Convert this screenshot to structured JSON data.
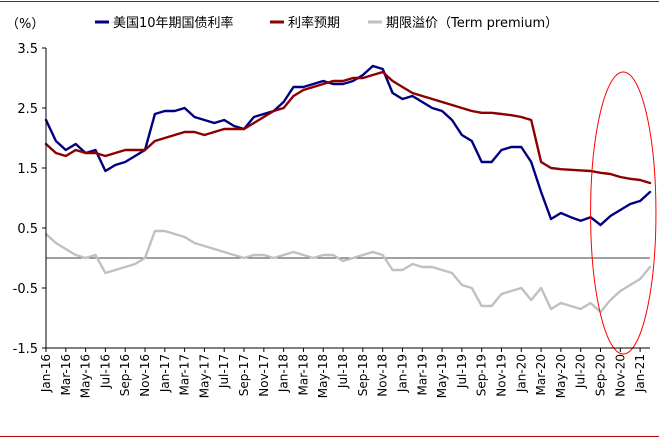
{
  "chart_data": {
    "type": "line",
    "unit_label": "（%）",
    "ylim": [
      -1.5,
      3.5
    ],
    "yticks": [
      3.5,
      2.5,
      1.5,
      0.5,
      -0.5,
      -1.5
    ],
    "ytick_labels": [
      "3.5",
      "2.5",
      "1.5",
      "0.5",
      "-0.5",
      "-1.5"
    ],
    "xlim": [
      0,
      61
    ],
    "xticks": [
      "Jan-16",
      "Mar-16",
      "May-16",
      "Jul-16",
      "Sep-16",
      "Nov-16",
      "Jan-17",
      "Mar-17",
      "May-17",
      "Jul-17",
      "Sep-17",
      "Nov-17",
      "Jan-18",
      "Mar-18",
      "May-18",
      "Jul-18",
      "Sep-18",
      "Nov-18",
      "Jan-19",
      "Mar-19",
      "May-19",
      "Jul-19",
      "Sep-19",
      "Nov-19",
      "Jan-20",
      "Mar-20",
      "May-20",
      "Jul-20",
      "Sep-20",
      "Nov-20",
      "Jan-21"
    ],
    "series": [
      {
        "name": "美国10年期国债利率",
        "color": "#000080",
        "points": [
          [
            0,
            2.3
          ],
          [
            1,
            1.95
          ],
          [
            2,
            1.8
          ],
          [
            3,
            1.9
          ],
          [
            4,
            1.75
          ],
          [
            5,
            1.8
          ],
          [
            6,
            1.45
          ],
          [
            7,
            1.55
          ],
          [
            8,
            1.6
          ],
          [
            9,
            1.7
          ],
          [
            10,
            1.8
          ],
          [
            11,
            2.4
          ],
          [
            12,
            2.45
          ],
          [
            13,
            2.45
          ],
          [
            14,
            2.5
          ],
          [
            15,
            2.35
          ],
          [
            16,
            2.3
          ],
          [
            17,
            2.25
          ],
          [
            18,
            2.3
          ],
          [
            19,
            2.2
          ],
          [
            20,
            2.15
          ],
          [
            21,
            2.35
          ],
          [
            22,
            2.4
          ],
          [
            23,
            2.45
          ],
          [
            24,
            2.6
          ],
          [
            25,
            2.85
          ],
          [
            26,
            2.85
          ],
          [
            27,
            2.9
          ],
          [
            28,
            2.95
          ],
          [
            29,
            2.9
          ],
          [
            30,
            2.9
          ],
          [
            31,
            2.95
          ],
          [
            32,
            3.05
          ],
          [
            33,
            3.2
          ],
          [
            34,
            3.15
          ],
          [
            35,
            2.75
          ],
          [
            36,
            2.65
          ],
          [
            37,
            2.7
          ],
          [
            38,
            2.6
          ],
          [
            39,
            2.5
          ],
          [
            40,
            2.45
          ],
          [
            41,
            2.3
          ],
          [
            42,
            2.05
          ],
          [
            43,
            1.95
          ],
          [
            44,
            1.6
          ],
          [
            45,
            1.6
          ],
          [
            46,
            1.8
          ],
          [
            47,
            1.85
          ],
          [
            48,
            1.85
          ],
          [
            49,
            1.6
          ],
          [
            50,
            1.1
          ],
          [
            51,
            0.65
          ],
          [
            52,
            0.75
          ],
          [
            53,
            0.68
          ],
          [
            54,
            0.62
          ],
          [
            55,
            0.68
          ],
          [
            56,
            0.55
          ],
          [
            57,
            0.7
          ],
          [
            58,
            0.8
          ],
          [
            59,
            0.9
          ],
          [
            60,
            0.95
          ],
          [
            61,
            1.1
          ]
        ]
      },
      {
        "name": "利率预期",
        "color": "#8b0000",
        "points": [
          [
            0,
            1.9
          ],
          [
            1,
            1.75
          ],
          [
            2,
            1.7
          ],
          [
            3,
            1.8
          ],
          [
            4,
            1.75
          ],
          [
            5,
            1.75
          ],
          [
            6,
            1.7
          ],
          [
            7,
            1.75
          ],
          [
            8,
            1.8
          ],
          [
            9,
            1.8
          ],
          [
            10,
            1.8
          ],
          [
            11,
            1.95
          ],
          [
            12,
            2.0
          ],
          [
            13,
            2.05
          ],
          [
            14,
            2.1
          ],
          [
            15,
            2.1
          ],
          [
            16,
            2.05
          ],
          [
            17,
            2.1
          ],
          [
            18,
            2.15
          ],
          [
            19,
            2.15
          ],
          [
            20,
            2.15
          ],
          [
            21,
            2.25
          ],
          [
            22,
            2.35
          ],
          [
            23,
            2.45
          ],
          [
            24,
            2.5
          ],
          [
            25,
            2.7
          ],
          [
            26,
            2.8
          ],
          [
            27,
            2.85
          ],
          [
            28,
            2.9
          ],
          [
            29,
            2.95
          ],
          [
            30,
            2.95
          ],
          [
            31,
            3.0
          ],
          [
            32,
            3.0
          ],
          [
            33,
            3.05
          ],
          [
            34,
            3.1
          ],
          [
            35,
            2.95
          ],
          [
            36,
            2.85
          ],
          [
            37,
            2.75
          ],
          [
            38,
            2.7
          ],
          [
            39,
            2.65
          ],
          [
            40,
            2.6
          ],
          [
            41,
            2.55
          ],
          [
            42,
            2.5
          ],
          [
            43,
            2.45
          ],
          [
            44,
            2.42
          ],
          [
            45,
            2.42
          ],
          [
            46,
            2.4
          ],
          [
            47,
            2.38
          ],
          [
            48,
            2.35
          ],
          [
            49,
            2.3
          ],
          [
            50,
            1.6
          ],
          [
            51,
            1.5
          ],
          [
            52,
            1.48
          ],
          [
            53,
            1.47
          ],
          [
            54,
            1.46
          ],
          [
            55,
            1.45
          ],
          [
            56,
            1.42
          ],
          [
            57,
            1.4
          ],
          [
            58,
            1.35
          ],
          [
            59,
            1.32
          ],
          [
            60,
            1.3
          ],
          [
            61,
            1.25
          ]
        ]
      },
      {
        "name": "期限溢价（Term premium）",
        "color": "#c0c0c0",
        "points": [
          [
            0,
            0.4
          ],
          [
            1,
            0.25
          ],
          [
            2,
            0.15
          ],
          [
            3,
            0.05
          ],
          [
            4,
            0.0
          ],
          [
            5,
            0.05
          ],
          [
            6,
            -0.25
          ],
          [
            7,
            -0.2
          ],
          [
            8,
            -0.15
          ],
          [
            9,
            -0.1
          ],
          [
            10,
            0.0
          ],
          [
            11,
            0.45
          ],
          [
            12,
            0.45
          ],
          [
            13,
            0.4
          ],
          [
            14,
            0.35
          ],
          [
            15,
            0.25
          ],
          [
            16,
            0.2
          ],
          [
            17,
            0.15
          ],
          [
            18,
            0.1
          ],
          [
            19,
            0.05
          ],
          [
            20,
            0.0
          ],
          [
            21,
            0.05
          ],
          [
            22,
            0.05
          ],
          [
            23,
            0.0
          ],
          [
            24,
            0.05
          ],
          [
            25,
            0.1
          ],
          [
            26,
            0.05
          ],
          [
            27,
            0.0
          ],
          [
            28,
            0.05
          ],
          [
            29,
            0.05
          ],
          [
            30,
            -0.05
          ],
          [
            31,
            0.0
          ],
          [
            32,
            0.05
          ],
          [
            33,
            0.1
          ],
          [
            34,
            0.05
          ],
          [
            35,
            -0.2
          ],
          [
            36,
            -0.2
          ],
          [
            37,
            -0.1
          ],
          [
            38,
            -0.15
          ],
          [
            39,
            -0.15
          ],
          [
            40,
            -0.2
          ],
          [
            41,
            -0.25
          ],
          [
            42,
            -0.45
          ],
          [
            43,
            -0.5
          ],
          [
            44,
            -0.8
          ],
          [
            45,
            -0.8
          ],
          [
            46,
            -0.6
          ],
          [
            47,
            -0.55
          ],
          [
            48,
            -0.5
          ],
          [
            49,
            -0.7
          ],
          [
            50,
            -0.5
          ],
          [
            51,
            -0.85
          ],
          [
            52,
            -0.75
          ],
          [
            53,
            -0.8
          ],
          [
            54,
            -0.85
          ],
          [
            55,
            -0.75
          ],
          [
            56,
            -0.9
          ],
          [
            57,
            -0.7
          ],
          [
            58,
            -0.55
          ],
          [
            59,
            -0.45
          ],
          [
            60,
            -0.35
          ],
          [
            61,
            -0.15
          ]
        ]
      }
    ],
    "annotations": [
      {
        "type": "ellipse",
        "color": "#ff0000",
        "x_center": 58.3,
        "y_center": 0.75,
        "x_radius": 3.3,
        "y_radius": 2.35
      }
    ]
  }
}
